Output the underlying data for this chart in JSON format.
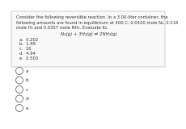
{
  "background_color": "#ffffff",
  "box_text_lines": [
    "Consider the following reversible reaction. In a 3.00-liter container, the",
    "following amounts are found in equilibrium at 400 C: 0.0420 mole N₂, 0.516",
    "mole H₂ and 0.0357 mole NH₃. Evaluate Kc."
  ],
  "equation": "N₂(g) + 3H₂(g) ⇌ 2NH₃(g)",
  "choices": [
    "a.  0.202",
    "b.  1.99",
    "c.  16",
    "d.  4.94",
    "e.  0.503"
  ],
  "option_labels": [
    "a",
    "b",
    "c",
    "d",
    "e"
  ],
  "font_size_text": 3.8,
  "font_size_eq": 4.0,
  "font_size_choices": 3.8,
  "font_size_options": 4.2,
  "text_color": "#333333",
  "box_edge_color": "#bbbbbb",
  "box_face_color": "#f9f9f9",
  "circle_edge_color": "#666666"
}
